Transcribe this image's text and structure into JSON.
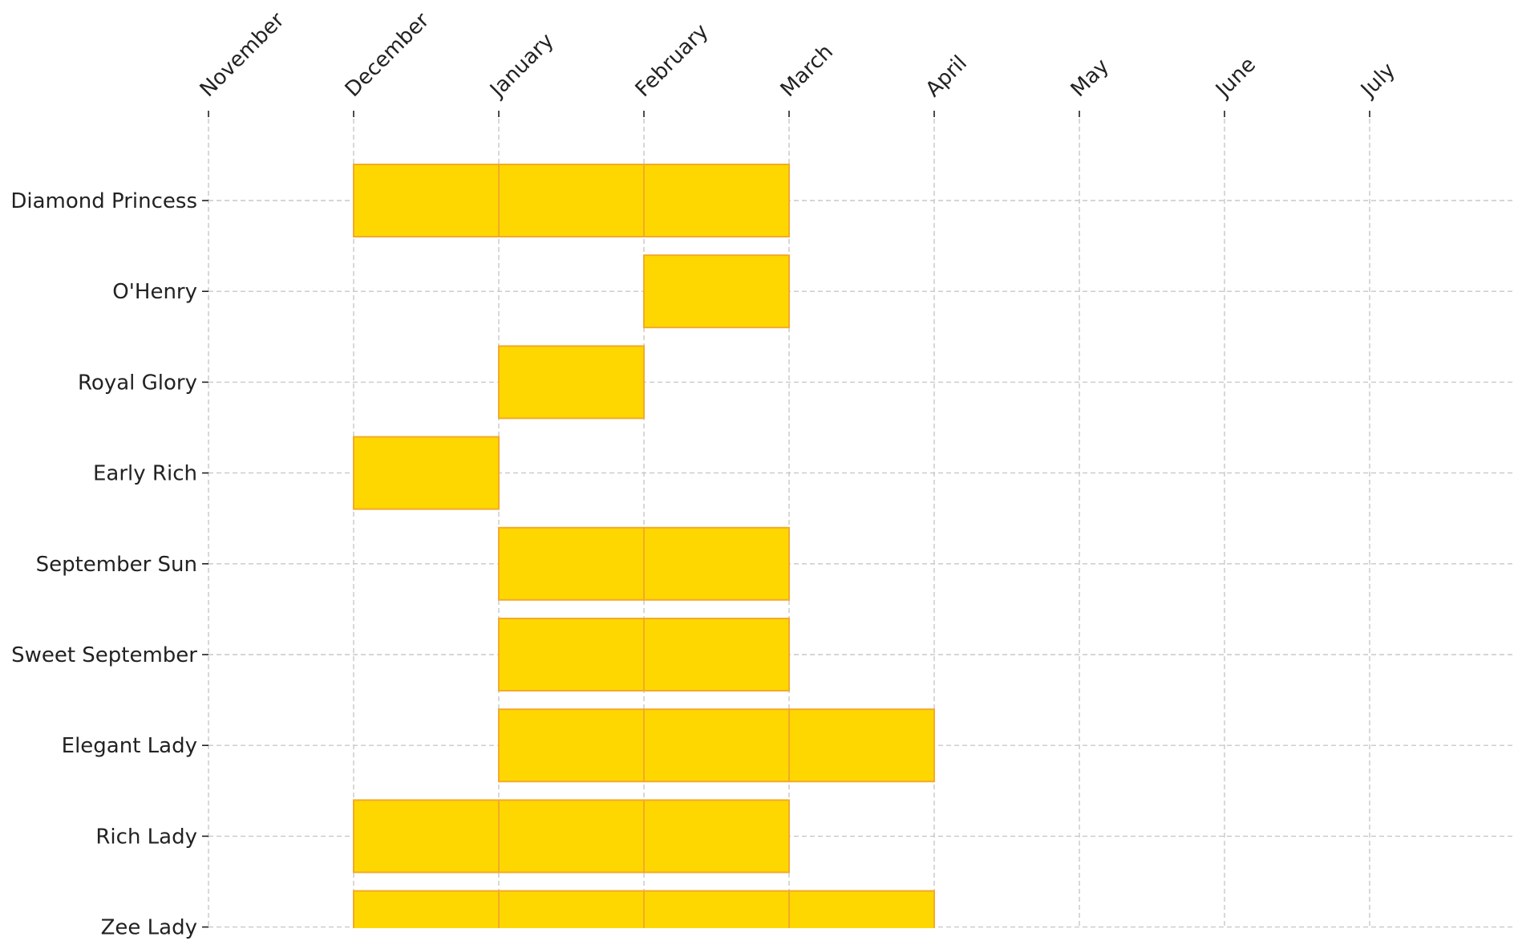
{
  "chart_data": {
    "type": "bar",
    "orientation": "horizontal-gantt",
    "x_categories": [
      "November",
      "December",
      "January",
      "February",
      "March",
      "April",
      "May",
      "June",
      "July"
    ],
    "x_axis_position": "top",
    "y_categories": [
      "Diamond Princess",
      "O'Henry",
      "Royal Glory",
      "Early Rich",
      "September Sun",
      "Sweet September",
      "Elegant Lady",
      "Rich Lady",
      "Zee Lady"
    ],
    "bars": [
      {
        "label": "Diamond Princess",
        "months": [
          "December",
          "January",
          "February"
        ]
      },
      {
        "label": "O'Henry",
        "months": [
          "February"
        ]
      },
      {
        "label": "Royal Glory",
        "months": [
          "January"
        ]
      },
      {
        "label": "Early Rich",
        "months": [
          "December"
        ]
      },
      {
        "label": "September Sun",
        "months": [
          "January",
          "February"
        ]
      },
      {
        "label": "Sweet September",
        "months": [
          "January",
          "February"
        ]
      },
      {
        "label": "Elegant Lady",
        "months": [
          "January",
          "February",
          "March"
        ]
      },
      {
        "label": "Rich Lady",
        "months": [
          "December",
          "January",
          "February"
        ]
      },
      {
        "label": "Zee Lady",
        "months": [
          "December",
          "January",
          "February",
          "March"
        ]
      }
    ],
    "grid": true,
    "colors": {
      "bar_fill": "#FFD700",
      "bar_edge": "#F4A928",
      "grid": "#c8c8c8"
    }
  }
}
